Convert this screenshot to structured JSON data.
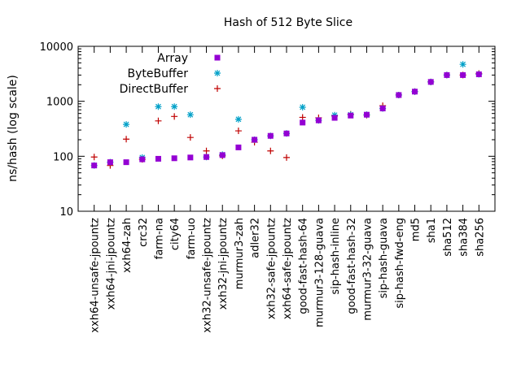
{
  "chart_data": {
    "type": "scatter",
    "title": "Hash of 512 Byte Slice",
    "ylabel": "ns/hash (log scale)",
    "xlabel": "",
    "y_scale": "log",
    "ylim": [
      10,
      10000
    ],
    "y_ticks": [
      "10",
      "100",
      "1000",
      "10000"
    ],
    "legend_position": "top-left",
    "categories": [
      "xxh64-unsafe-jpountz",
      "xxh64-jni-jpountz",
      "xxh64-zah",
      "crc32",
      "farm-na",
      "city64",
      "farm-uo",
      "xxh32-unsafe-jpountz",
      "xxh32-jni-jpountz",
      "murmur3-zah",
      "adler32",
      "xxh32-safe-jpountz",
      "xxh64-safe-jpountz",
      "good-fast-hash-64",
      "murmur3-128-guava",
      "sip-hash-inline",
      "good-fast-hash-32",
      "murmur3-32-guava",
      "sip-hash-guava",
      "sip-hash-fwd-eng",
      "md5",
      "sha1",
      "sha512",
      "sha384",
      "sha256"
    ],
    "series": [
      {
        "name": "Array",
        "color": "#9400d3",
        "marker": "square",
        "values": [
          68,
          78,
          78,
          88,
          90,
          92,
          95,
          97,
          105,
          145,
          200,
          235,
          260,
          410,
          450,
          500,
          550,
          570,
          740,
          1300,
          1500,
          2250,
          3000,
          3000,
          3100
        ]
      },
      {
        "name": "ByteBuffer",
        "color": "#00a0c8",
        "marker": "star",
        "values": [
          68,
          78,
          380,
          95,
          800,
          800,
          570,
          97,
          107,
          470,
          200,
          235,
          260,
          780,
          450,
          560,
          570,
          570,
          740,
          1300,
          1500,
          2250,
          3000,
          4700,
          3100
        ]
      },
      {
        "name": "DirectBuffer",
        "color": "#c00000",
        "marker": "plus",
        "values": [
          97,
          68,
          205,
          88,
          440,
          530,
          220,
          125,
          102,
          290,
          180,
          125,
          95,
          510,
          500,
          540,
          580,
          560,
          830,
          1300,
          1500,
          2250,
          3000,
          3000,
          3200
        ]
      }
    ]
  }
}
